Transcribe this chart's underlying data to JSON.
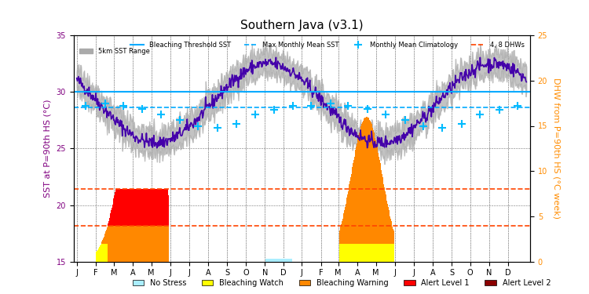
{
  "title": "Southern Java (v3.1)",
  "ylabel_left": "SST at P=90th HS (°C)",
  "ylabel_right": "DHW from P=90th HS (°C week)",
  "sst_ylim": [
    15,
    35
  ],
  "dhw_ylim": [
    0,
    25
  ],
  "bleaching_threshold": 30.0,
  "max_monthly_mean": 28.6,
  "dhw4_line": 22.0,
  "dhw8_line": 21.0,
  "background_color": "#ffffff",
  "grid_color": "#000000",
  "months_2024": [
    "J",
    "F",
    "M",
    "A",
    "M",
    "J",
    "J",
    "A",
    "S",
    "O",
    "N",
    "D"
  ],
  "months_2025": [
    "J",
    "F",
    "M",
    "A",
    "M",
    "J",
    "J",
    "A",
    "S",
    "O",
    "N",
    "D"
  ],
  "sst_color": "#4400aa",
  "bleach_thresh_color": "#00aaff",
  "max_monthly_color": "#00aaff",
  "clim_color": "#00bbff",
  "dhw_line_color": "#ff4400",
  "sst_range_color": "#aaaaaa",
  "alert2_color": "#8b0000",
  "alert1_color": "#ff0000",
  "warning_color": "#ff8800",
  "watch_color": "#ffff00",
  "nostress_color": "#aaeeff"
}
